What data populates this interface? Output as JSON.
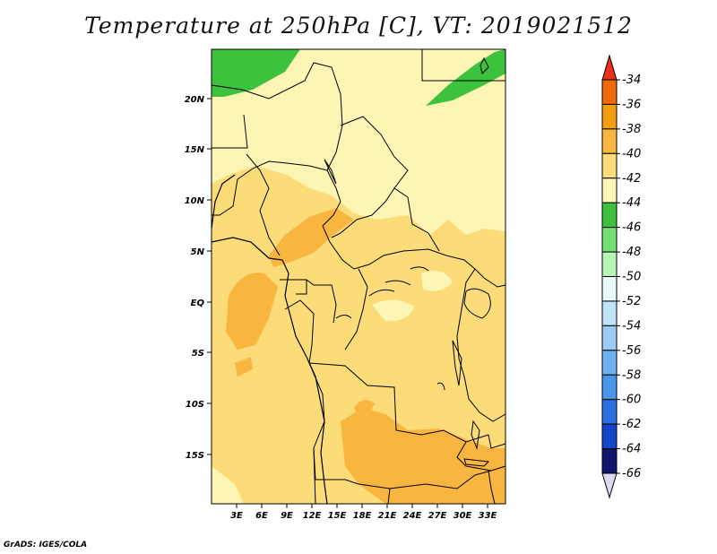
{
  "title": "Temperature at 250hPa [C], VT: 2019021512",
  "credit": "GrADS: IGES/COLA",
  "map": {
    "lat_ticks": [
      "20N",
      "15N",
      "10N",
      "5N",
      "EQ",
      "5S",
      "10S",
      "15S"
    ],
    "lon_ticks": [
      "3E",
      "6E",
      "9E",
      "12E",
      "15E",
      "18E",
      "21E",
      "24E",
      "27E",
      "30E",
      "33E"
    ]
  },
  "colorbar": {
    "levels": [
      "-34",
      "-36",
      "-38",
      "-40",
      "-42",
      "-44",
      "-46",
      "-48",
      "-50",
      "-52",
      "-54",
      "-56",
      "-58",
      "-60",
      "-62",
      "-64",
      "-66"
    ],
    "colors": [
      "#e8301c",
      "#f06a0c",
      "#f59c0f",
      "#f8b53f",
      "#fbdc79",
      "#fdf5b4",
      "#3cc23c",
      "#73e073",
      "#b6f6b4",
      "#e8fcfb",
      "#bfe3f9",
      "#9ccaf4",
      "#6fb1f0",
      "#4996e8",
      "#2d6fe0",
      "#1346c8",
      "#10156e",
      "#dcdaf0"
    ]
  }
}
